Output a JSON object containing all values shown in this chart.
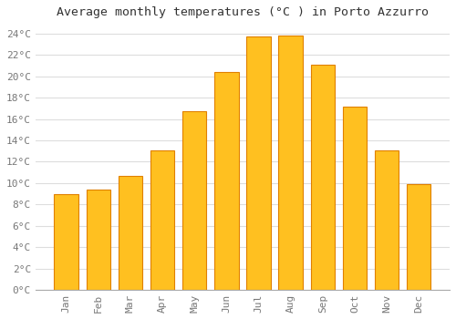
{
  "title": "Average monthly temperatures (°C ) in Porto Azzurro",
  "months": [
    "Jan",
    "Feb",
    "Mar",
    "Apr",
    "May",
    "Jun",
    "Jul",
    "Aug",
    "Sep",
    "Oct",
    "Nov",
    "Dec"
  ],
  "values": [
    9.0,
    9.4,
    10.7,
    13.1,
    16.7,
    20.4,
    23.7,
    23.8,
    21.1,
    17.2,
    13.1,
    9.9
  ],
  "bar_color": "#FFC020",
  "bar_edge_color": "#E08000",
  "background_color": "#FFFFFF",
  "grid_color": "#DDDDDD",
  "ylim": [
    0,
    25
  ],
  "yticks": [
    0,
    2,
    4,
    6,
    8,
    10,
    12,
    14,
    16,
    18,
    20,
    22,
    24
  ],
  "title_fontsize": 9.5,
  "tick_fontsize": 8,
  "tick_font": "monospace"
}
